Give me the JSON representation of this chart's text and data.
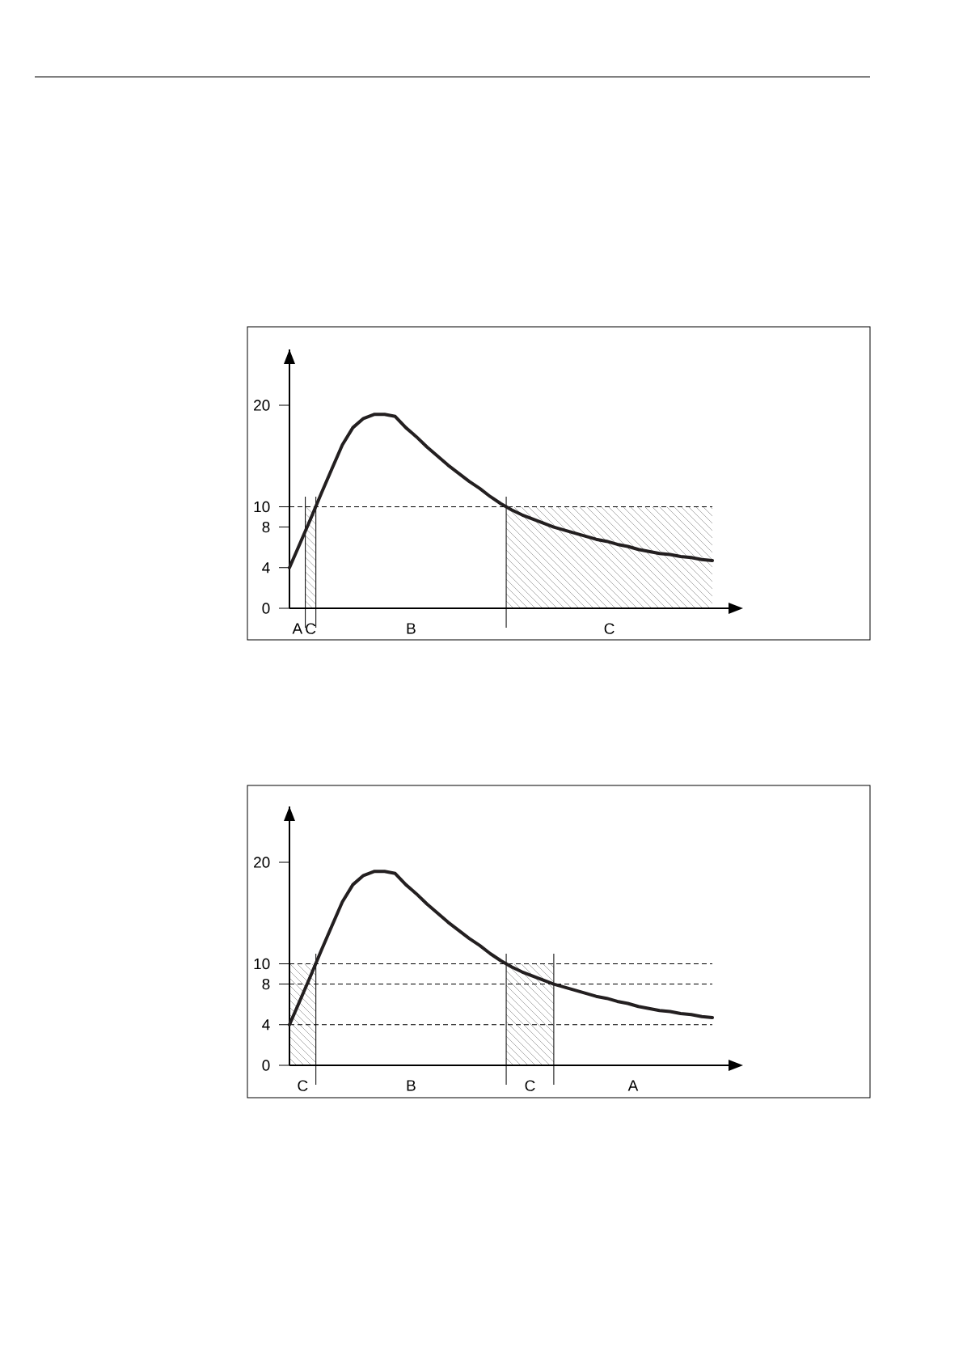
{
  "chart_data": [
    {
      "type": "line",
      "color": "#231f20",
      "line_style": "solid",
      "tick_labels": "y",
      "categories": [
        null,
        null,
        null,
        null,
        null,
        null,
        null,
        null,
        null,
        null,
        null,
        null,
        null,
        null,
        null,
        null,
        null,
        null,
        null,
        null,
        null,
        null,
        null,
        null,
        null,
        null,
        null,
        null,
        null,
        null,
        null,
        null,
        null,
        null,
        null,
        null,
        null,
        null,
        null,
        null,
        null
      ],
      "values": [
        4,
        6.4,
        8.8,
        11.3,
        13.7,
        16.1,
        17.8,
        18.7,
        19.1,
        19.1,
        18.9,
        17.8,
        16.9,
        15.9,
        15.0,
        14.1,
        13.3,
        12.5,
        11.8,
        11.0,
        10.3,
        9.7,
        9.2,
        8.8,
        8.4,
        8.0,
        7.7,
        7.4,
        7.1,
        6.8,
        6.6,
        6.3,
        6.1,
        5.8,
        5.6,
        5.4,
        5.3,
        5.1,
        5.0,
        4.8,
        4.7
      ],
      "ylim": [
        0,
        25.5
      ],
      "yticks": [
        0,
        4,
        8,
        10,
        20
      ],
      "ref_lines": [
        {
          "axis": "y",
          "value": 10,
          "line_style": "dashed"
        }
      ],
      "annotations": [
        "A",
        "C",
        "B",
        "C"
      ]
    },
    {
      "type": "line",
      "color": "#231f20",
      "line_style": "solid",
      "tick_labels": "y",
      "categories": [
        null,
        null,
        null,
        null,
        null,
        null,
        null,
        null,
        null,
        null,
        null,
        null,
        null,
        null,
        null,
        null,
        null,
        null,
        null,
        null,
        null,
        null,
        null,
        null,
        null,
        null,
        null,
        null,
        null,
        null,
        null,
        null,
        null,
        null,
        null,
        null,
        null,
        null,
        null,
        null,
        null
      ],
      "values": [
        4,
        6.4,
        8.8,
        11.3,
        13.7,
        16.1,
        17.8,
        18.7,
        19.1,
        19.1,
        18.9,
        17.8,
        16.9,
        15.9,
        15.0,
        14.1,
        13.3,
        12.5,
        11.8,
        11.0,
        10.3,
        9.7,
        9.2,
        8.8,
        8.4,
        8.0,
        7.7,
        7.4,
        7.1,
        6.8,
        6.6,
        6.3,
        6.1,
        5.8,
        5.6,
        5.4,
        5.3,
        5.1,
        5.0,
        4.8,
        4.7
      ],
      "ylim": [
        0,
        25.5
      ],
      "yticks": [
        0,
        4,
        8,
        10,
        20
      ],
      "ref_lines": [
        {
          "axis": "y",
          "value": 10,
          "line_style": "dashed"
        },
        {
          "axis": "y",
          "value": 8,
          "line_style": "dashed"
        },
        {
          "axis": "y",
          "value": 4,
          "line_style": "dashed"
        }
      ],
      "annotations": [
        "C",
        "B",
        "C",
        "A"
      ]
    }
  ]
}
